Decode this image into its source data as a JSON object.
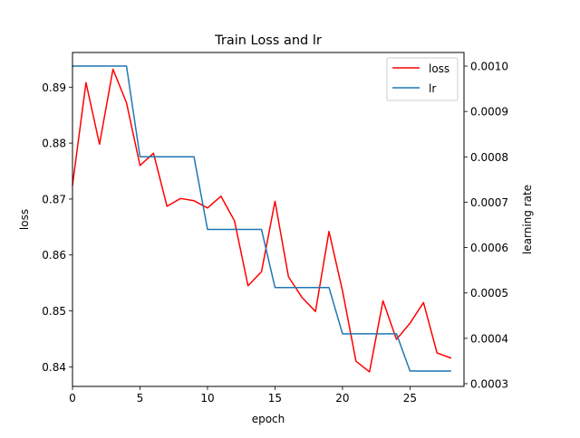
{
  "chart_data": {
    "type": "line",
    "title": "Train Loss and lr",
    "xlabel": "epoch",
    "ylabel_left": "loss",
    "ylabel_right": "learning rate",
    "xlim": [
      0,
      29
    ],
    "ylim_left": [
      0.8365,
      0.8962
    ],
    "ylim_right": [
      0.000294,
      0.00103
    ],
    "xticks": [
      0,
      5,
      10,
      15,
      20,
      25
    ],
    "xtick_labels": [
      "0",
      "5",
      "10",
      "15",
      "20",
      "25"
    ],
    "yticks_left": [
      0.84,
      0.85,
      0.86,
      0.87,
      0.88,
      0.89
    ],
    "ytick_labels_left": [
      "0.84",
      "0.85",
      "0.86",
      "0.87",
      "0.88",
      "0.89"
    ],
    "yticks_right": [
      0.0003,
      0.0004,
      0.0005,
      0.0006,
      0.0007,
      0.0008,
      0.0009,
      0.001
    ],
    "ytick_labels_right": [
      "0.0003",
      "0.0004",
      "0.0005",
      "0.0006",
      "0.0007",
      "0.0008",
      "0.0009",
      "0.0010"
    ],
    "grid": false,
    "legend_position": "top-right",
    "series": [
      {
        "name": "loss",
        "axis": "left",
        "color": "#ff0000",
        "x": [
          0,
          1,
          2,
          3,
          4,
          5,
          6,
          7,
          8,
          9,
          10,
          11,
          12,
          13,
          14,
          15,
          16,
          17,
          18,
          19,
          20,
          21,
          22,
          23,
          24,
          25,
          26,
          27,
          28
        ],
        "values": [
          0.8725,
          0.8908,
          0.8798,
          0.8932,
          0.8872,
          0.876,
          0.8782,
          0.8687,
          0.8701,
          0.8697,
          0.8684,
          0.8705,
          0.8661,
          0.8545,
          0.857,
          0.8696,
          0.8561,
          0.8524,
          0.8499,
          0.8642,
          0.8536,
          0.841,
          0.8391,
          0.8518,
          0.8449,
          0.8478,
          0.8515,
          0.8425,
          0.8416
        ]
      },
      {
        "name": "lr",
        "axis": "right",
        "color": "#1f77b4",
        "x": [
          0,
          1,
          2,
          3,
          4,
          5,
          6,
          7,
          8,
          9,
          10,
          11,
          12,
          13,
          14,
          15,
          16,
          17,
          18,
          19,
          20,
          21,
          22,
          23,
          24,
          25,
          26,
          27,
          28
        ],
        "values": [
          0.001,
          0.001,
          0.001,
          0.001,
          0.001,
          0.0008,
          0.0008,
          0.0008,
          0.0008,
          0.0008,
          0.00064,
          0.00064,
          0.00064,
          0.00064,
          0.00064,
          0.000512,
          0.000512,
          0.000512,
          0.000512,
          0.000512,
          0.00041,
          0.00041,
          0.00041,
          0.00041,
          0.00041,
          0.000328,
          0.000328,
          0.000328,
          0.000328
        ]
      }
    ]
  }
}
